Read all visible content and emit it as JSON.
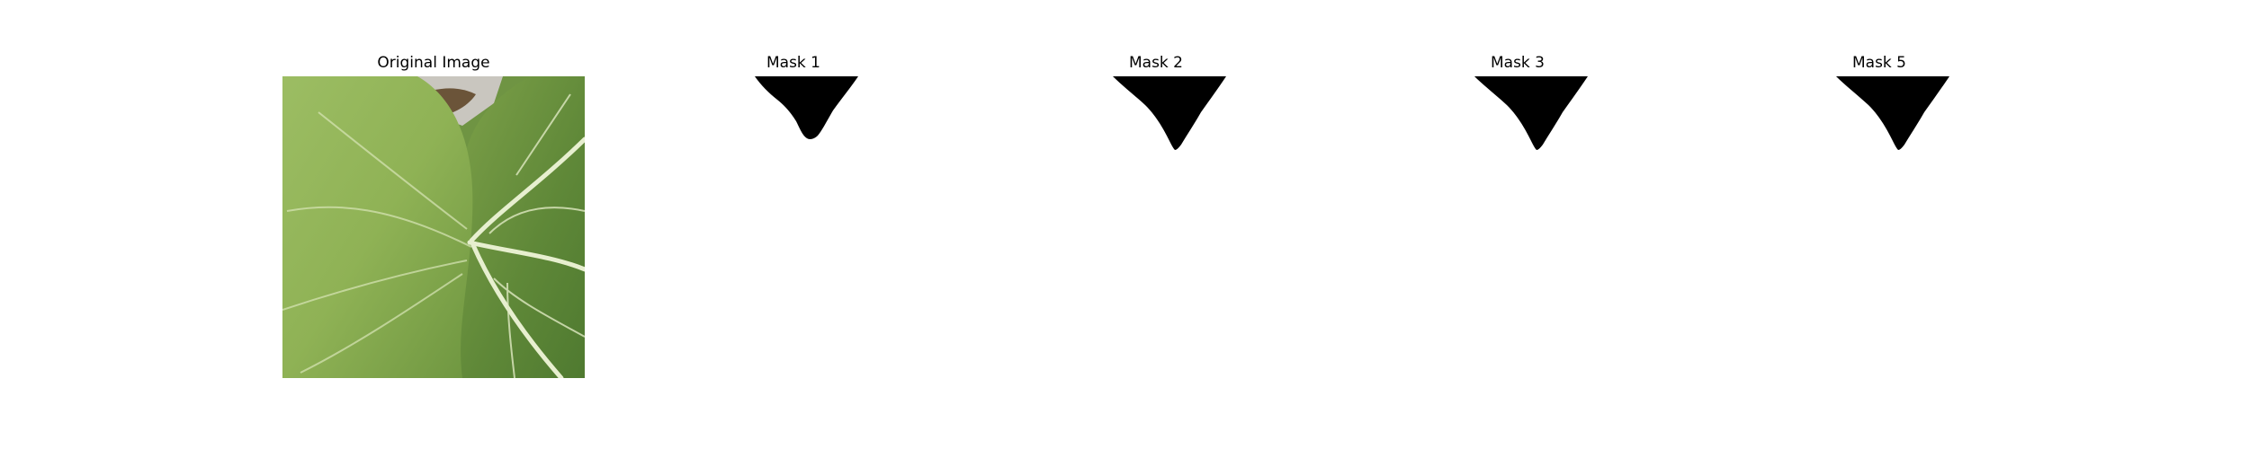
{
  "panels": [
    {
      "title": "Original Image",
      "kind": "photo",
      "subject": "green cabbage leaves"
    },
    {
      "title": "Mask 1",
      "kind": "mask"
    },
    {
      "title": "Mask 2",
      "kind": "mask"
    },
    {
      "title": "Mask 3",
      "kind": "mask"
    },
    {
      "title": "Mask 5",
      "kind": "mask"
    }
  ],
  "colors": {
    "background": "#ffffff",
    "mask_fill": "#000000",
    "leaf_light": "#a6c16a",
    "leaf_mid": "#86a84b",
    "leaf_dark": "#5f8236",
    "vein": "#dfeac2"
  }
}
